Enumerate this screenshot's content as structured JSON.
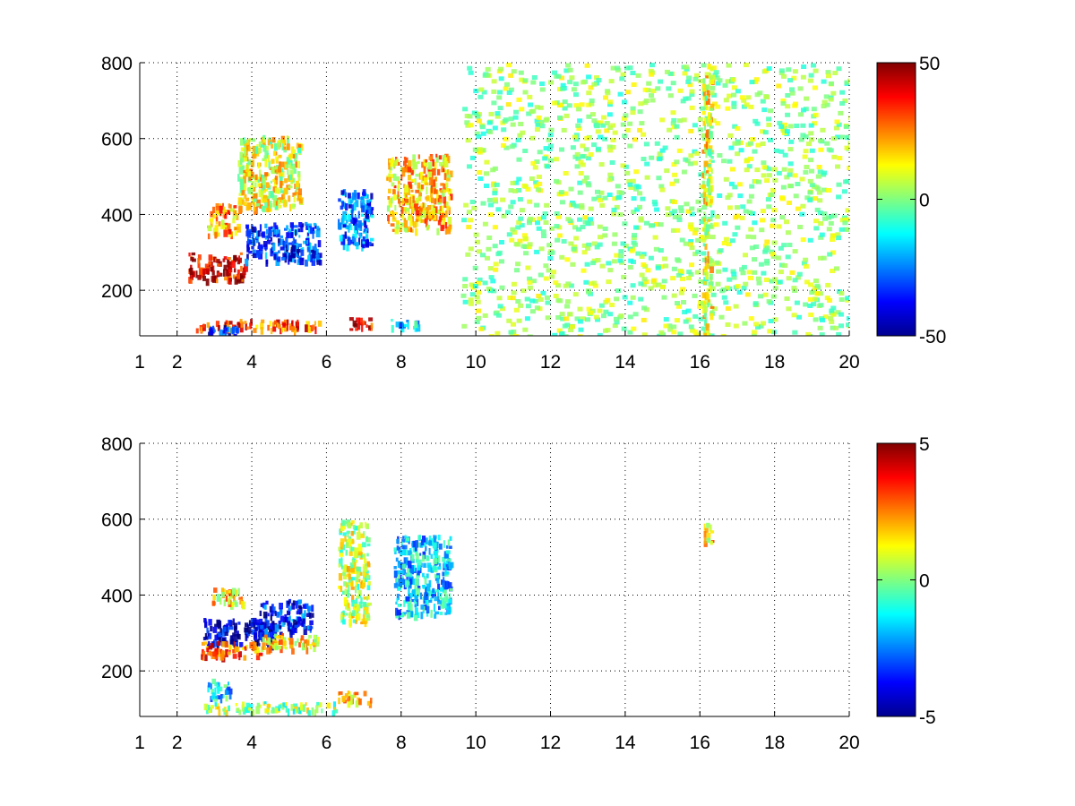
{
  "chart_data": [
    {
      "type": "heatmap",
      "title": "",
      "xlabel": "",
      "ylabel": "",
      "xlim": [
        1,
        20
      ],
      "ylim": [
        80,
        800
      ],
      "x_ticks": [
        1,
        2,
        4,
        6,
        8,
        10,
        12,
        14,
        16,
        18,
        20
      ],
      "y_ticks": [
        200,
        400,
        600,
        800
      ],
      "grid": true,
      "colormap": "jet",
      "colorbar": {
        "min": -50,
        "max": 50,
        "ticks": [
          50,
          0,
          -50
        ]
      },
      "features": [
        {
          "x": [
            2.3,
            3.8
          ],
          "y": [
            230,
            300
          ],
          "value": 40
        },
        {
          "x": [
            3.8,
            5.8
          ],
          "y": [
            280,
            380
          ],
          "value": -32
        },
        {
          "x": [
            6.3,
            7.2
          ],
          "y": [
            320,
            470
          ],
          "value": -28
        },
        {
          "x": [
            7.6,
            9.3
          ],
          "y": [
            360,
            560
          ],
          "value": 18
        },
        {
          "x": [
            2.8,
            3.6
          ],
          "y": [
            350,
            430
          ],
          "value": 22
        },
        {
          "x": [
            3.6,
            5.3
          ],
          "y": [
            420,
            610
          ],
          "value": 10
        },
        {
          "x": [
            2.5,
            5.8
          ],
          "y": [
            100,
            125
          ],
          "value": 30
        },
        {
          "x": [
            6.6,
            7.2
          ],
          "y": [
            100,
            130
          ],
          "value": 40
        },
        {
          "x": [
            7.7,
            8.5
          ],
          "y": [
            100,
            125
          ],
          "value": -20
        },
        {
          "x": [
            2.8,
            3.6
          ],
          "y": [
            80,
            110
          ],
          "value": -35
        },
        {
          "x": [
            9.6,
            20
          ],
          "y": [
            80,
            800
          ],
          "value": 2
        },
        {
          "x": [
            16.05,
            16.3
          ],
          "y": [
            80,
            800
          ],
          "value": 10
        }
      ]
    },
    {
      "type": "heatmap",
      "title": "",
      "xlabel": "",
      "ylabel": "",
      "xlim": [
        1,
        20
      ],
      "ylim": [
        80,
        800
      ],
      "x_ticks": [
        1,
        2,
        4,
        6,
        8,
        10,
        12,
        14,
        16,
        18,
        20
      ],
      "y_ticks": [
        200,
        400,
        600,
        800
      ],
      "grid": true,
      "colormap": "jet",
      "colorbar": {
        "min": -5,
        "max": 5,
        "ticks": [
          5,
          0,
          -5
        ]
      },
      "features": [
        {
          "x": [
            2.7,
            4.6
          ],
          "y": [
            270,
            340
          ],
          "value": -4.5
        },
        {
          "x": [
            4.2,
            5.6
          ],
          "y": [
            300,
            390
          ],
          "value": -3.5
        },
        {
          "x": [
            2.6,
            4.2
          ],
          "y": [
            240,
            280
          ],
          "value": 2.8
        },
        {
          "x": [
            4.2,
            5.8
          ],
          "y": [
            260,
            300
          ],
          "value": 1.5
        },
        {
          "x": [
            2.9,
            3.8
          ],
          "y": [
            380,
            420
          ],
          "value": 1.5
        },
        {
          "x": [
            6.3,
            7.1
          ],
          "y": [
            330,
            600
          ],
          "value": 0.5
        },
        {
          "x": [
            7.8,
            9.3
          ],
          "y": [
            350,
            560
          ],
          "value": -1.8
        },
        {
          "x": [
            2.7,
            6.2
          ],
          "y": [
            95,
            120
          ],
          "value": 0.2
        },
        {
          "x": [
            2.8,
            3.4
          ],
          "y": [
            130,
            180
          ],
          "value": -1.5
        },
        {
          "x": [
            6.3,
            7.2
          ],
          "y": [
            120,
            150
          ],
          "value": 2.0
        },
        {
          "x": [
            16.1,
            16.3
          ],
          "y": [
            540,
            600
          ],
          "value": 1.5
        }
      ]
    }
  ]
}
